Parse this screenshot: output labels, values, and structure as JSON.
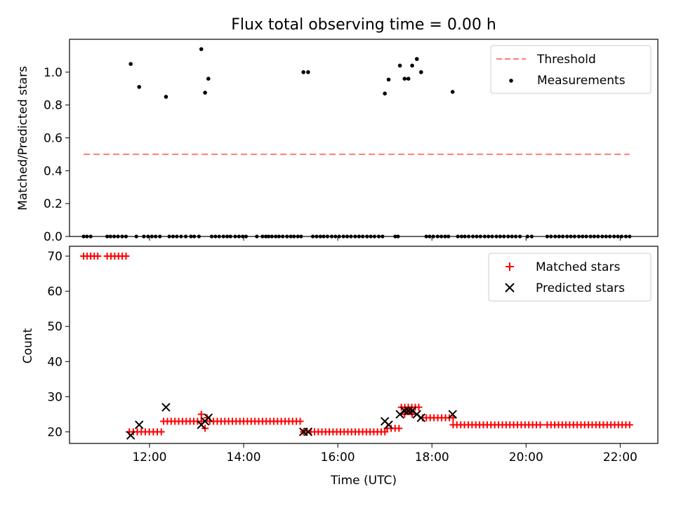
{
  "title": "Flux total observing time = 0.00 h",
  "chart_data": [
    {
      "type": "scatter",
      "ylabel": "Matched/Predicted stars",
      "xlabel": "",
      "xlim": [
        10.3,
        22.8
      ],
      "ylim": [
        0,
        1.2
      ],
      "yticks": [
        0.0,
        0.2,
        0.4,
        0.6,
        0.8,
        1.0
      ],
      "ytick_labels": [
        "0.0",
        "0.2",
        "0.4",
        "0.6",
        "0.8",
        "1.0"
      ],
      "xticks": [
        12,
        14,
        16,
        18,
        20,
        22
      ],
      "grid": false,
      "legend_position": "top-right",
      "series": [
        {
          "name": "Threshold",
          "style": "dashed-line",
          "color": "#ff7b7b",
          "x": [
            10.6,
            22.2
          ],
          "y": [
            0.5,
            0.5
          ]
        },
        {
          "name": "Measurements",
          "style": "dot",
          "color": "#000000",
          "points": [
            [
              11.6,
              1.05
            ],
            [
              11.78,
              0.91
            ],
            [
              12.35,
              0.85
            ],
            [
              13.1,
              1.14
            ],
            [
              13.18,
              0.875
            ],
            [
              13.25,
              0.96
            ],
            [
              15.27,
              1.0
            ],
            [
              15.37,
              1.0
            ],
            [
              17.0,
              0.87
            ],
            [
              17.08,
              0.955
            ],
            [
              17.32,
              1.04
            ],
            [
              17.42,
              0.96
            ],
            [
              17.5,
              0.96
            ],
            [
              17.58,
              1.04
            ],
            [
              17.68,
              1.08
            ],
            [
              17.77,
              1.0
            ],
            [
              18.44,
              0.88
            ]
          ],
          "zero_x": [
            10.6,
            10.67,
            10.75,
            11.1,
            11.17,
            11.25,
            11.33,
            11.42,
            11.5,
            11.72,
            11.88,
            11.97,
            12.05,
            12.13,
            12.22,
            12.42,
            12.5,
            12.58,
            12.67,
            12.77,
            12.88,
            12.95,
            13.05,
            13.32,
            13.4,
            13.48,
            13.57,
            13.65,
            13.72,
            13.82,
            13.9,
            13.98,
            14.05,
            14.28,
            14.4,
            14.47,
            14.53,
            14.6,
            14.68,
            14.75,
            14.83,
            14.92,
            15.0,
            15.07,
            15.15,
            15.22,
            15.47,
            15.55,
            15.63,
            15.7,
            15.78,
            15.87,
            15.95,
            16.03,
            16.12,
            16.2,
            16.28,
            16.37,
            16.45,
            16.53,
            16.62,
            16.7,
            16.78,
            16.87,
            16.95,
            17.22,
            17.28,
            17.88,
            17.95,
            18.03,
            18.12,
            18.2,
            18.28,
            18.35,
            18.55,
            18.63,
            18.7,
            18.78,
            18.87,
            18.95,
            19.03,
            19.12,
            19.2,
            19.28,
            19.37,
            19.45,
            19.53,
            19.62,
            19.7,
            19.78,
            19.87,
            20.03,
            20.12,
            20.45,
            20.53,
            20.62,
            20.7,
            20.78,
            20.87,
            20.95,
            21.03,
            21.12,
            21.2,
            21.28,
            21.37,
            21.45,
            21.53,
            21.62,
            21.7,
            21.78,
            21.87,
            21.95,
            22.03,
            22.12,
            22.2
          ]
        }
      ]
    },
    {
      "type": "scatter",
      "ylabel": "Count",
      "xlabel": "Time (UTC)",
      "xlim": [
        10.3,
        22.8
      ],
      "ylim": [
        16.7,
        72.8
      ],
      "yticks": [
        20,
        30,
        40,
        50,
        60,
        70
      ],
      "ytick_labels": [
        "20",
        "30",
        "40",
        "50",
        "60",
        "70"
      ],
      "xticks": [
        12,
        14,
        16,
        18,
        20,
        22
      ],
      "xtick_labels": [
        "12:00",
        "14:00",
        "16:00",
        "18:00",
        "20:00",
        "22:00"
      ],
      "grid": false,
      "legend_position": "top-right",
      "series": [
        {
          "name": "Matched stars",
          "marker": "plus",
          "color": "#ff0000",
          "segments": [
            {
              "x_start": 10.6,
              "x_end": 10.9,
              "y": 70
            },
            {
              "x_start": 11.1,
              "x_end": 11.5,
              "y": 70
            },
            {
              "x_start": 11.57,
              "x_end": 12.25,
              "y": 20
            },
            {
              "x_start": 12.3,
              "x_end": 13.1,
              "y": 23
            },
            {
              "x_start": 13.28,
              "x_end": 15.2,
              "y": 23
            },
            {
              "x_start": 15.27,
              "x_end": 17.0,
              "y": 20
            },
            {
              "x_start": 17.05,
              "x_end": 17.3,
              "y": 21
            },
            {
              "x_start": 17.35,
              "x_end": 17.72,
              "y": 27
            },
            {
              "x_start": 17.8,
              "x_end": 18.45,
              "y": 24
            },
            {
              "x_start": 18.45,
              "x_end": 20.3,
              "y": 22
            },
            {
              "x_start": 20.45,
              "x_end": 22.2,
              "y": 22
            }
          ],
          "extra_points": [
            [
              13.1,
              25
            ],
            [
              13.18,
              21
            ],
            [
              13.22,
              24
            ],
            [
              17.42,
              25
            ],
            [
              17.5,
              26
            ],
            [
              17.58,
              25
            ]
          ]
        },
        {
          "name": "Predicted stars",
          "marker": "x",
          "color": "#000000",
          "points": [
            [
              11.6,
              19
            ],
            [
              11.78,
              22
            ],
            [
              12.35,
              27
            ],
            [
              13.1,
              22
            ],
            [
              13.18,
              23
            ],
            [
              13.25,
              24
            ],
            [
              15.27,
              20
            ],
            [
              15.37,
              20
            ],
            [
              17.0,
              23
            ],
            [
              17.08,
              22
            ],
            [
              17.32,
              25
            ],
            [
              17.42,
              26
            ],
            [
              17.5,
              26
            ],
            [
              17.58,
              26
            ],
            [
              17.68,
              25
            ],
            [
              17.77,
              24
            ],
            [
              18.44,
              25
            ]
          ]
        }
      ]
    }
  ]
}
